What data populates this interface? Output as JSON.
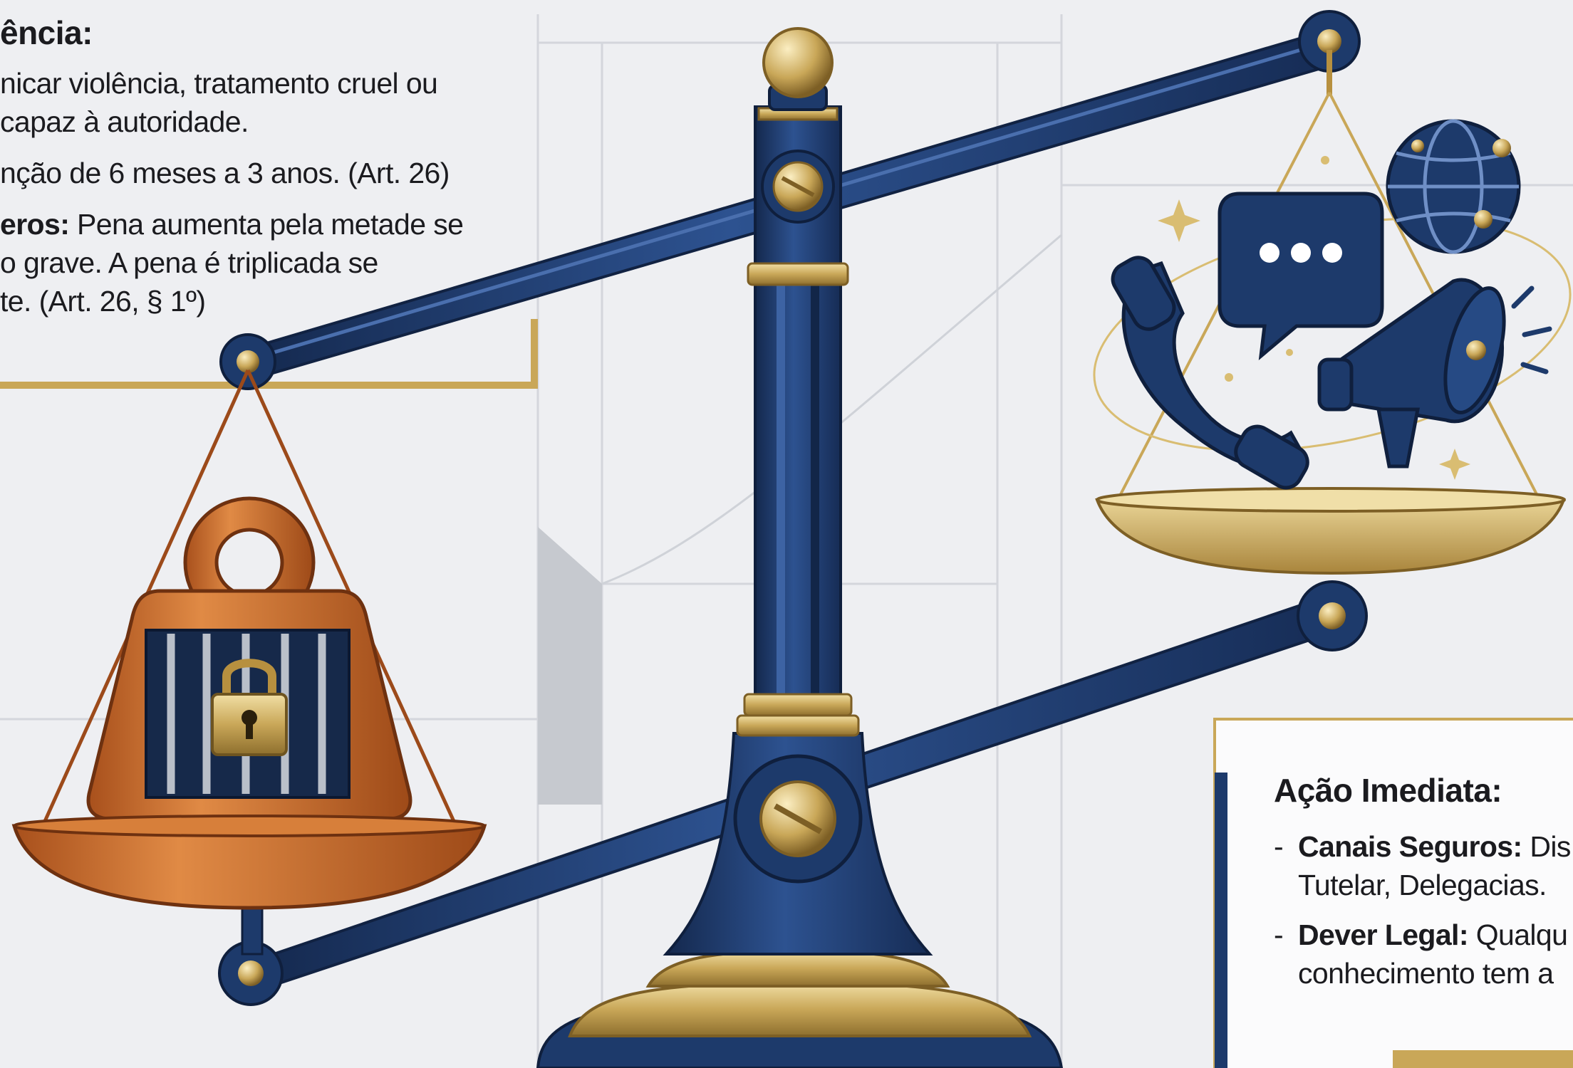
{
  "left_panel": {
    "heading": "ência:",
    "lines": [
      "nicar violência, tratamento cruel ou",
      "capaz à autoridade.",
      "nção de 6 meses a 3 anos. (Art. 26)"
    ],
    "aggravating": {
      "bold": "eros:",
      "rest": " Pena aumenta pela metade se",
      "line2": "o grave. A pena é triplicada se",
      "line3": "te. (Art. 26, § 1º)"
    }
  },
  "right_panel": {
    "heading": "Ação Imediata:",
    "items": [
      {
        "bold": "Canais Seguros:",
        "rest": " Dis",
        "line2": "Tutelar, Delegacias."
      },
      {
        "bold": "Dever Legal:",
        "rest": " Qualqu",
        "line2": "conhecimento tem a"
      }
    ]
  },
  "colors": {
    "navy": "#1d3a6b",
    "gold": "#c9a758",
    "copper": "#c8692a",
    "background": "#eeeff2"
  },
  "icons": [
    "scale-icon",
    "weight-icon",
    "padlock-icon",
    "phone-icon",
    "chat-bubble-icon",
    "globe-icon",
    "megaphone-icon"
  ]
}
